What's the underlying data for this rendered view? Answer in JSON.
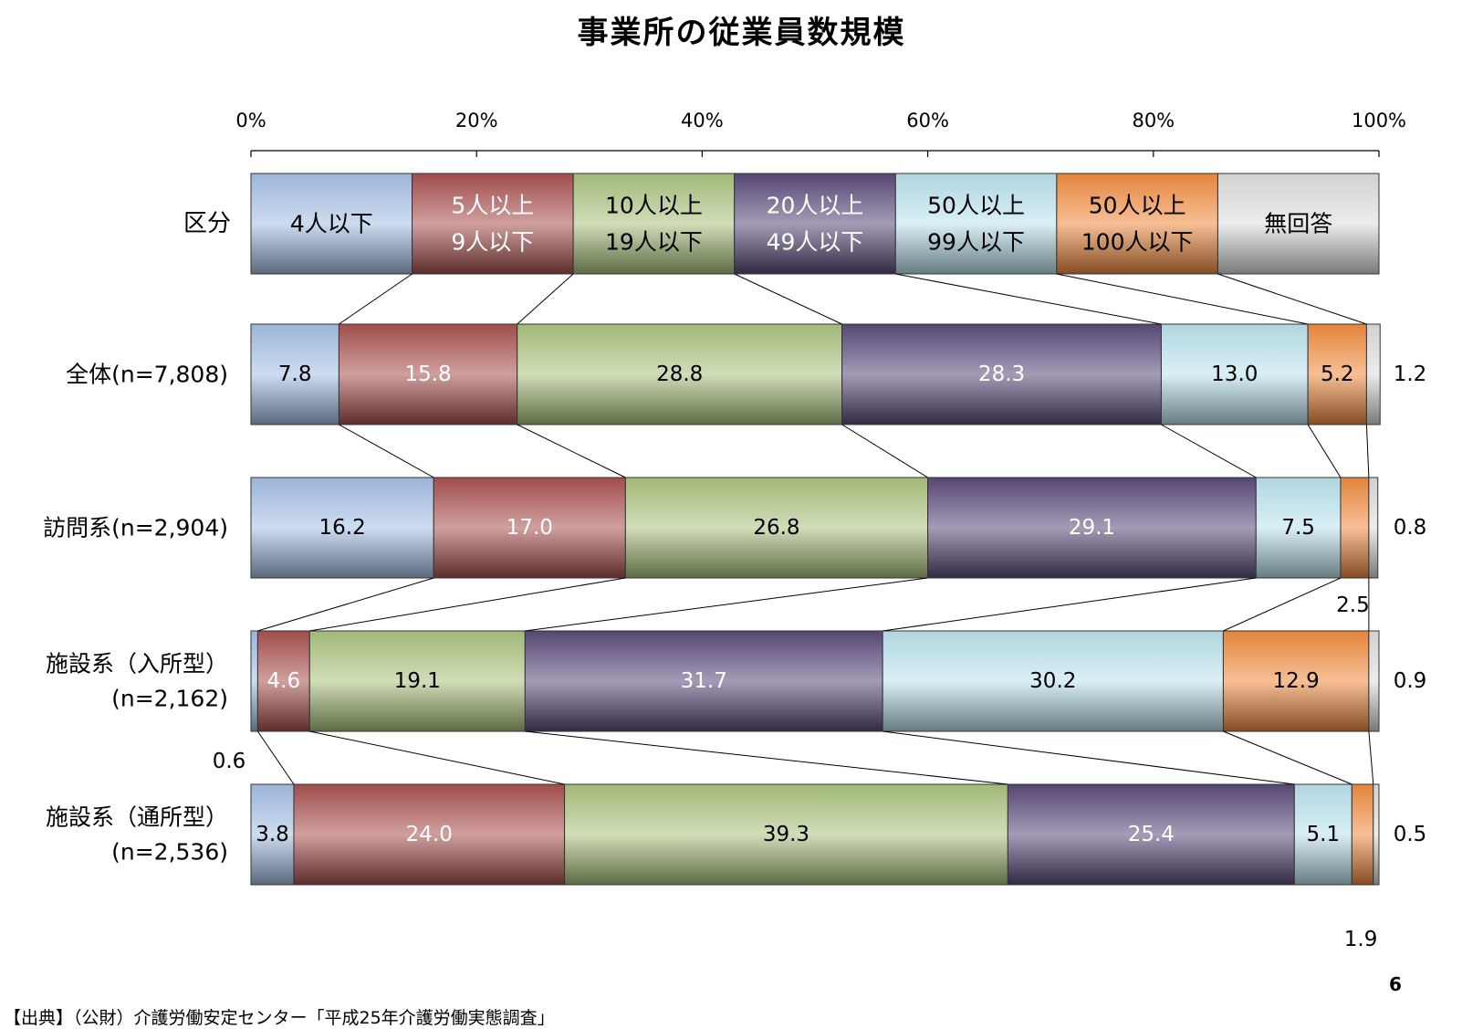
{
  "title": "事業所の従業員数規模",
  "page_number": "6",
  "source": "【出典】（公財）介護労働安定センター「平成25年介護労働実態調査」",
  "chart_data": {
    "type": "bar",
    "orientation": "horizontal",
    "stacked": "100%",
    "xlim": [
      0,
      100
    ],
    "x_ticks": [
      "0%",
      "20%",
      "40%",
      "60%",
      "80%",
      "100%"
    ],
    "grid": false,
    "legend": {
      "row_label": "区分",
      "entries": [
        {
          "lines": [
            "4人以下"
          ]
        },
        {
          "lines": [
            "5人以上",
            "9人以下"
          ]
        },
        {
          "lines": [
            "10人以上",
            "19人以下"
          ]
        },
        {
          "lines": [
            "20人以上",
            "49人以下"
          ]
        },
        {
          "lines": [
            "50人以上",
            "99人以下"
          ]
        },
        {
          "lines": [
            "50人以上",
            "100人以下"
          ]
        },
        {
          "lines": [
            "無回答"
          ]
        }
      ]
    },
    "colors": [
      "#a4bfe3",
      "#a8514f",
      "#a9c27d",
      "#5a4a7a",
      "#b9e1ec",
      "#f08b3f",
      "#dcdcdc"
    ],
    "label_colors": [
      "#000000",
      "#ffffff",
      "#000000",
      "#ffffff",
      "#000000",
      "#000000",
      "#000000"
    ],
    "categories": [
      {
        "lines": [
          "全体(n=7,808)"
        ],
        "values": [
          7.8,
          15.8,
          28.8,
          28.3,
          13.0,
          5.2,
          1.2
        ],
        "labels": [
          "7.8",
          "15.8",
          "28.8",
          "28.3",
          "13.0",
          "5.2",
          "1.2"
        ]
      },
      {
        "lines": [
          "訪問系(n=2,904)"
        ],
        "values": [
          16.2,
          17.0,
          26.8,
          29.1,
          7.5,
          2.5,
          0.8
        ],
        "labels": [
          "16.2",
          "17.0",
          "26.8",
          "29.1",
          "7.5",
          "2.5",
          "0.8"
        ]
      },
      {
        "lines": [
          "施設系（入所型）",
          "(n=2,162)"
        ],
        "values": [
          0.6,
          4.6,
          19.1,
          31.7,
          30.2,
          12.9,
          0.9
        ],
        "labels": [
          "0.6",
          "4.6",
          "19.1",
          "31.7",
          "30.2",
          "12.9",
          "0.9"
        ]
      },
      {
        "lines": [
          "施設系（通所型）",
          "(n=2,536)"
        ],
        "values": [
          3.8,
          24.0,
          39.3,
          25.4,
          5.1,
          1.9,
          0.5
        ],
        "labels": [
          "3.8",
          "24.0",
          "39.3",
          "25.4",
          "5.1",
          "1.9",
          "0.5"
        ]
      }
    ]
  }
}
